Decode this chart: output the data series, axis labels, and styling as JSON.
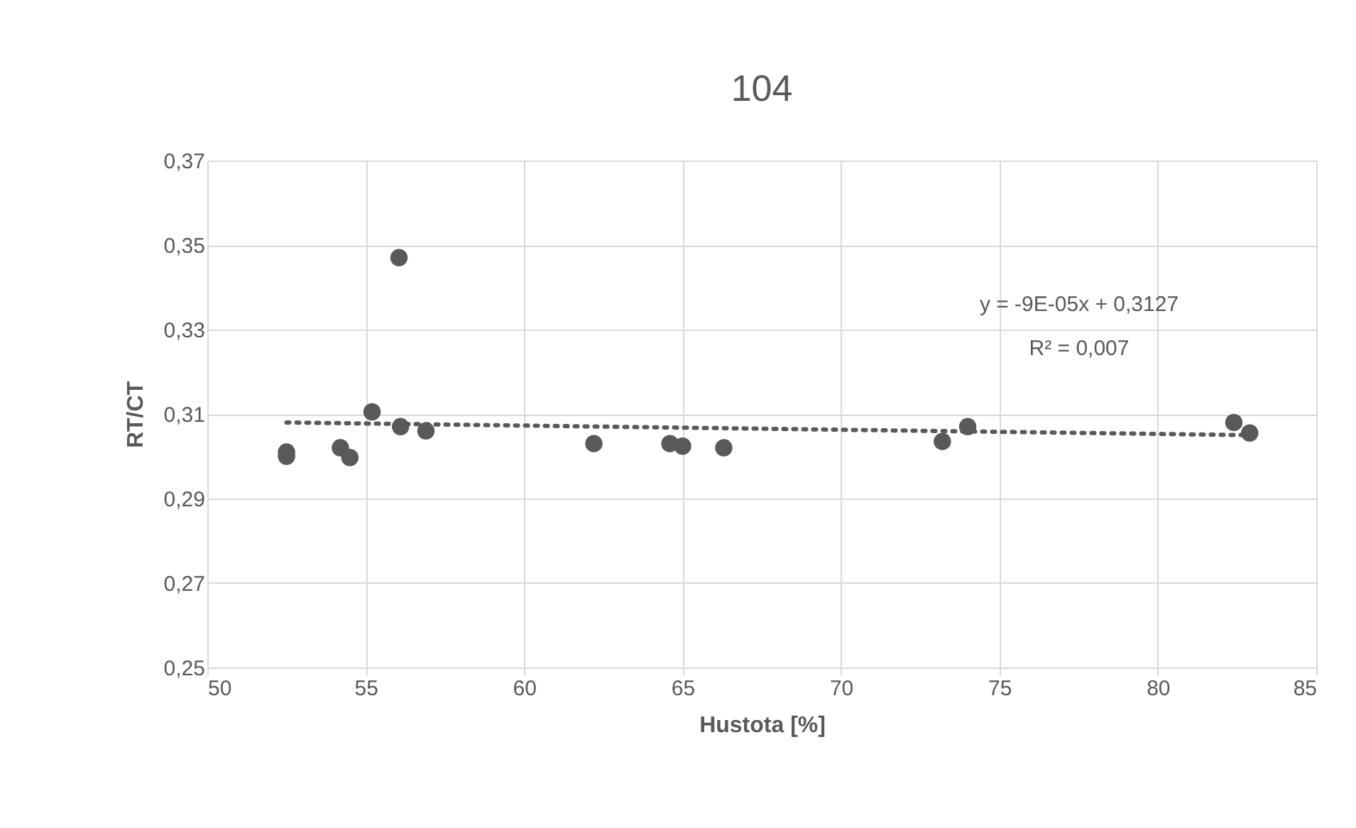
{
  "chart_data": {
    "type": "scatter",
    "title": "104",
    "xlabel": "Hustota [%]",
    "ylabel": "RT/CT",
    "xlim": [
      50,
      85
    ],
    "xticks": [
      50,
      55,
      60,
      65,
      70,
      75,
      80,
      85
    ],
    "ylim": [
      0.25,
      0.37
    ],
    "yticks": [
      {
        "value": 0.25,
        "label": "0,25"
      },
      {
        "value": 0.27,
        "label": "0,27"
      },
      {
        "value": 0.29,
        "label": "0,29"
      },
      {
        "value": 0.31,
        "label": "0,31"
      },
      {
        "value": 0.33,
        "label": "0,33"
      },
      {
        "value": 0.35,
        "label": "0,35"
      },
      {
        "value": 0.37,
        "label": "0,37"
      }
    ],
    "grid": true,
    "marker": "circle",
    "series": [
      {
        "color": "#595959",
        "x": [
          52.5,
          52.5,
          54.2,
          54.5,
          55.2,
          56.05,
          56.1,
          56.9,
          62.2,
          64.6,
          65.0,
          66.3,
          73.2,
          74.0,
          82.4,
          82.9
        ],
        "values": [
          0.3,
          0.301,
          0.302,
          0.2997,
          0.3105,
          0.347,
          0.307,
          0.306,
          0.303,
          0.303,
          0.3024,
          0.302,
          0.3035,
          0.307,
          0.308,
          0.3055
        ]
      },
      {
        "type": "line",
        "color": "#595959",
        "line_style": "dotted",
        "marker": "none",
        "x": [
          52.5,
          82.9
        ],
        "values": [
          0.308,
          0.305
        ]
      }
    ],
    "annotations": [
      "y = -9E-05x + 0,3127",
      "R² = 0,007"
    ]
  }
}
